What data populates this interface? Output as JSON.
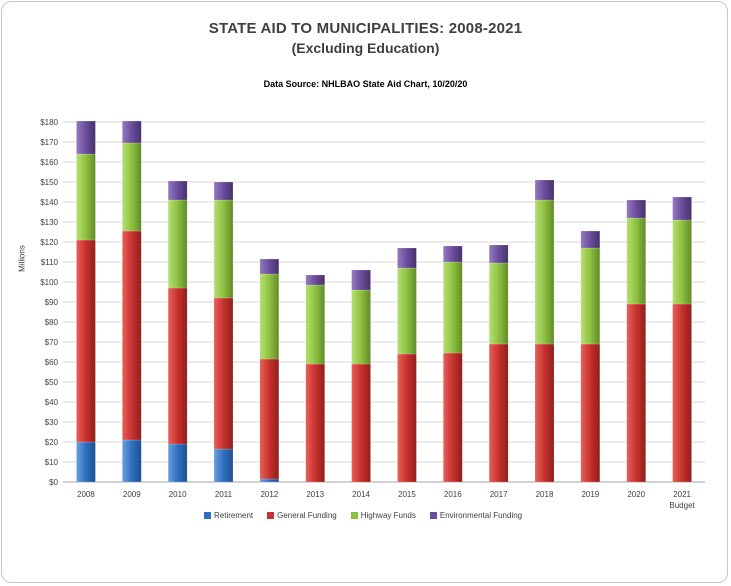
{
  "chart_data": {
    "type": "bar",
    "stacked": true,
    "title": "STATE AID TO MUNICIPALITIES:  2008-2021",
    "subtitle": "(Excluding Education)",
    "source": "Data Source:  NHLBAO State Aid Chart, 10/20/20",
    "ylabel": "Millions",
    "ylim": [
      0,
      180
    ],
    "ytick_step": 10,
    "ytick_labels": [
      "$0",
      "$10",
      "$20",
      "$30",
      "$40",
      "$50",
      "$60",
      "$70",
      "$80",
      "$90",
      "$100",
      "$110",
      "$120",
      "$130",
      "$140",
      "$150",
      "$160",
      "$170",
      "$180"
    ],
    "categories": [
      "2008",
      "2009",
      "2010",
      "2011",
      "2012",
      "2013",
      "2014",
      "2015",
      "2016",
      "2017",
      "2018",
      "2019",
      "2020",
      "2021"
    ],
    "category_sublabels": [
      "",
      "",
      "",
      "",
      "",
      "",
      "",
      "",
      "",
      "",
      "",
      "",
      "",
      "Budget"
    ],
    "series": [
      {
        "name": "Retirement",
        "color": "#2f6fbf",
        "values": [
          20,
          21,
          19,
          16.5,
          1.5,
          0,
          0,
          0,
          0,
          0,
          0,
          0,
          0,
          0
        ]
      },
      {
        "name": "General Funding",
        "color": "#c8312e",
        "values": [
          101,
          104.5,
          78,
          75.5,
          60,
          59,
          59,
          64,
          64.5,
          69,
          69,
          69,
          89,
          89
        ]
      },
      {
        "name": "Highway Funds",
        "color": "#8dc13f",
        "values": [
          43,
          44,
          44,
          49,
          42.5,
          39.5,
          37,
          43,
          45.5,
          40.5,
          72,
          48,
          43,
          42
        ]
      },
      {
        "name": "Environmental Funding",
        "color": "#6a4c9c",
        "values": [
          16.5,
          11,
          9.5,
          9,
          7.5,
          5,
          10,
          10,
          8,
          9,
          10,
          8.5,
          9,
          11.5
        ]
      }
    ],
    "grid": true,
    "legend_position": "bottom"
  }
}
